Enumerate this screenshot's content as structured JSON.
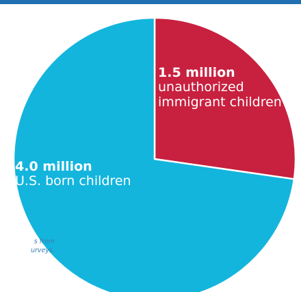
{
  "colors": {
    "top_bar": "#1f6fb2",
    "us_born": "#13b5dd",
    "unauthorized": "#c8203f",
    "slice_border": "#ffffff",
    "source_text": "#3a7fb3"
  },
  "source_note": {
    "line1": "s from",
    "line2": "urveys."
  },
  "chart_data": {
    "type": "pie",
    "title": "",
    "start_angle_deg": 0,
    "direction": "clockwise",
    "slices": [
      {
        "id": "unauthorized",
        "value": 1.5,
        "value_label": "1.5 million",
        "label_line1": "unauthorized",
        "label_line2": "immigrant children",
        "color": "#c8203f"
      },
      {
        "id": "us_born",
        "value": 4.0,
        "value_label": "4.0 million",
        "label_line1": "U.S. born children",
        "color": "#13b5dd"
      }
    ]
  }
}
